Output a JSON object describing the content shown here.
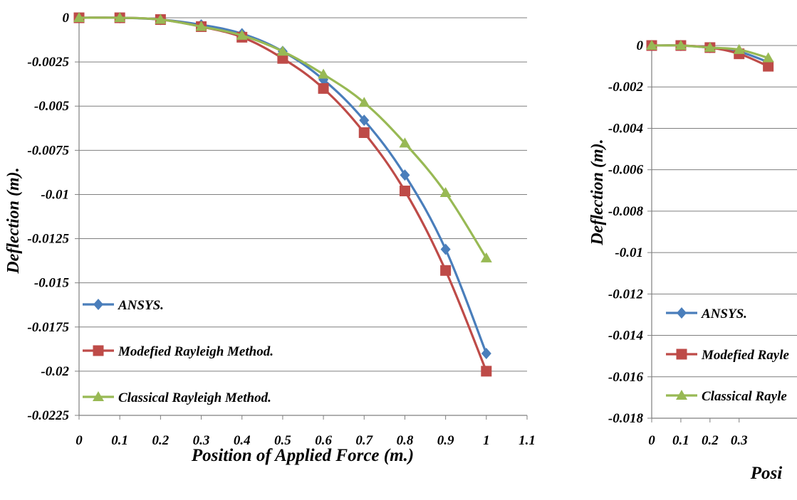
{
  "colors": {
    "ansys": "#4a7ebb",
    "modified": "#be4b48",
    "classical": "#98b954"
  },
  "chart_data": [
    {
      "type": "line",
      "title": "",
      "xlabel": "Position of Applied Force (m.)",
      "ylabel": "Deflection (m).",
      "xlim": [
        0,
        1.1
      ],
      "ylim": [
        -0.0225,
        0
      ],
      "x_ticks": [
        "0",
        "0.1",
        "0.2",
        "0.3",
        "0.4",
        "0.5",
        "0.6",
        "0.7",
        "0.8",
        "0.9",
        "1",
        "1.1"
      ],
      "y_ticks": [
        "0",
        "-0.0025",
        "-0.005",
        "-0.0075",
        "-0.01",
        "-0.0125",
        "-0.015",
        "-0.0175",
        "-0.02",
        "-0.0225"
      ],
      "grid": "horizontal",
      "legend_position": "bottom-left",
      "series": [
        {
          "name": "ANSYS.",
          "marker": "diamond",
          "color": "#4a7ebb",
          "x": [
            0,
            0.1,
            0.2,
            0.3,
            0.4,
            0.5,
            0.6,
            0.7,
            0.8,
            0.9,
            1.0
          ],
          "y": [
            0,
            0,
            -0.0001,
            -0.0004,
            -0.0009,
            -0.0019,
            -0.0035,
            -0.0058,
            -0.0089,
            -0.0131,
            -0.019
          ]
        },
        {
          "name": "Modefied Rayleigh Method.",
          "marker": "square",
          "color": "#be4b48",
          "x": [
            0,
            0.1,
            0.2,
            0.3,
            0.4,
            0.5,
            0.6,
            0.7,
            0.8,
            0.9,
            1.0
          ],
          "y": [
            0,
            0,
            -0.0001,
            -0.0005,
            -0.0011,
            -0.0023,
            -0.004,
            -0.0065,
            -0.0098,
            -0.0143,
            -0.02
          ]
        },
        {
          "name": "Classical Rayleigh Method.",
          "marker": "triangle",
          "color": "#98b954",
          "x": [
            0,
            0.1,
            0.2,
            0.3,
            0.4,
            0.5,
            0.6,
            0.7,
            0.8,
            0.9,
            1.0
          ],
          "y": [
            0,
            0,
            -0.0001,
            -0.0005,
            -0.001,
            -0.0019,
            -0.0032,
            -0.0048,
            -0.0071,
            -0.0099,
            -0.0136
          ]
        }
      ]
    },
    {
      "type": "line",
      "title": "",
      "xlabel": "Posi",
      "ylabel": "Deflection (m).",
      "xlim": [
        0,
        1.1
      ],
      "ylim": [
        -0.018,
        0
      ],
      "x_ticks": [
        "0",
        "0.1",
        "0.2",
        "0.3"
      ],
      "y_ticks": [
        "0",
        "-0.002",
        "-0.004",
        "-0.006",
        "-0.008",
        "-0.01",
        "-0.012",
        "-0.014",
        "-0.016",
        "-0.018"
      ],
      "grid": "horizontal",
      "legend_position": "bottom-left",
      "series": [
        {
          "name": "ANSYS.",
          "marker": "diamond",
          "color": "#4a7ebb",
          "x": [
            0,
            0.1,
            0.2,
            0.3,
            0.4
          ],
          "y": [
            0,
            0,
            -0.0001,
            -0.0003,
            -0.0008
          ]
        },
        {
          "name": "Modefied Rayle",
          "marker": "square",
          "color": "#be4b48",
          "x": [
            0,
            0.1,
            0.2,
            0.3,
            0.4
          ],
          "y": [
            0,
            0,
            -0.0001,
            -0.0004,
            -0.001
          ]
        },
        {
          "name": "Classical Rayle",
          "marker": "triangle",
          "color": "#98b954",
          "x": [
            0,
            0.1,
            0.2,
            0.3,
            0.4
          ],
          "y": [
            0,
            0,
            -0.0001,
            -0.0002,
            -0.0006
          ]
        }
      ]
    }
  ]
}
